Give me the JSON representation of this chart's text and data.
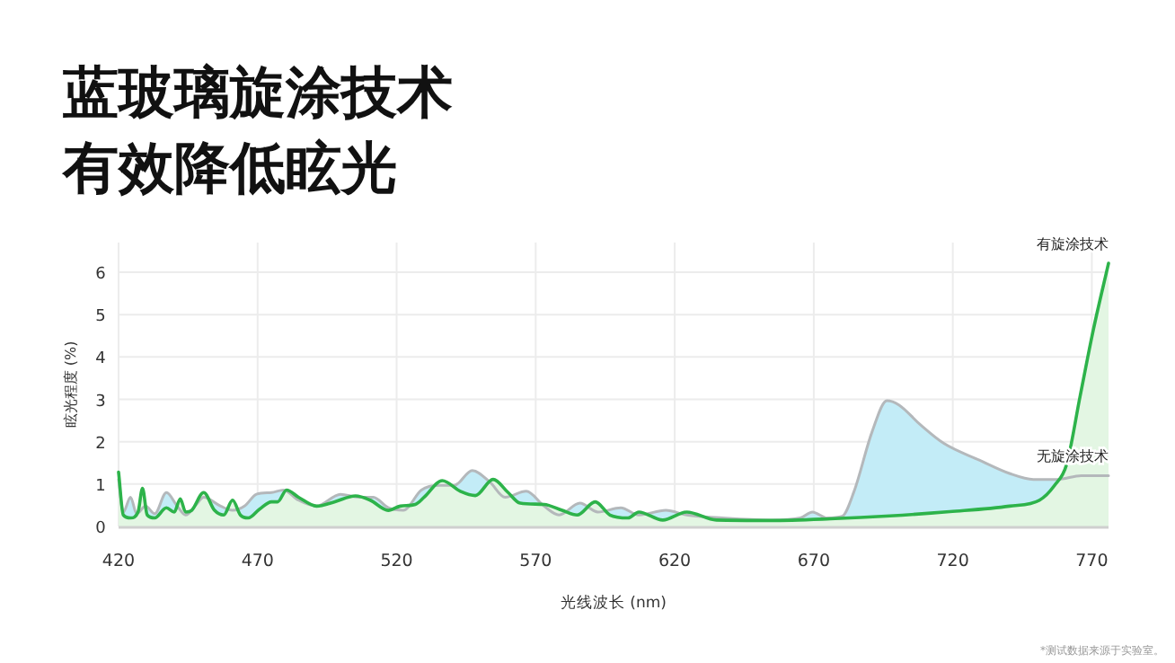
{
  "chart_data": {
    "type": "area",
    "title": "蓝玻璃旋涂技术",
    "subtitle": "有效降低眩光",
    "xlabel": "光线波长 (nm)",
    "ylabel": "眩光程度 (%)",
    "annotations": [
      "*测试数据来源于实验室。"
    ],
    "xlim": [
      420,
      776
    ],
    "xticks": [
      420,
      470,
      520,
      570,
      620,
      670,
      720,
      770
    ],
    "ylim": [
      0,
      6.7
    ],
    "yticks": [
      0,
      1,
      2,
      3,
      4,
      5,
      6
    ],
    "grid": true,
    "series": [
      {
        "name": "无旋涂技术",
        "color": "#b4b8bb",
        "x": [
          420,
          421.7,
          424.3,
          426.5,
          429.7,
          433,
          437.2,
          441.1,
          444.1,
          448,
          450.6,
          456.7,
          461,
          465.3,
          469.6,
          475,
          479.3,
          484.7,
          491.2,
          499.8,
          506.3,
          511.6,
          517,
          522.4,
          528.9,
          535.3,
          540.7,
          547.2,
          553.6,
          559,
          566.6,
          573,
          578.4,
          585.9,
          592.4,
          600.6,
          607.1,
          616.8,
          624.3,
          637.2,
          654.4,
          665.2,
          669.5,
          674.8,
          680.2,
          684.5,
          691,
          696.3,
          700.6,
          708.2,
          716.8,
          729.7,
          740.4,
          749,
          757.6,
          766.2,
          776
        ],
        "values": [
          1.11,
          0.34,
          0.69,
          0.3,
          0.48,
          0.3,
          0.8,
          0.48,
          0.27,
          0.52,
          0.69,
          0.48,
          0.38,
          0.48,
          0.76,
          0.8,
          0.86,
          0.62,
          0.48,
          0.76,
          0.69,
          0.69,
          0.44,
          0.38,
          0.86,
          0.97,
          0.97,
          1.32,
          1.04,
          0.69,
          0.83,
          0.48,
          0.27,
          0.55,
          0.34,
          0.44,
          0.27,
          0.38,
          0.27,
          0.2,
          0.15,
          0.2,
          0.34,
          0.2,
          0.24,
          0.83,
          2.24,
          2.97,
          2.87,
          2.41,
          1.96,
          1.56,
          1.25,
          1.11,
          1.11,
          1.2,
          1.2
        ]
      },
      {
        "name": "有旋涂技术",
        "color": "#2db34a",
        "x": [
          420,
          421.7,
          424.3,
          427,
          428.6,
          430.3,
          433,
          437.2,
          440,
          442.2,
          444.1,
          446.3,
          450.6,
          454.5,
          457.8,
          461,
          463.8,
          466.6,
          470.7,
          475,
          477.2,
          480.4,
          484.7,
          491.2,
          497.6,
          505.2,
          510.5,
          517,
          521.3,
          526.7,
          529.9,
          536.4,
          542.9,
          548.3,
          554.7,
          560.1,
          564.4,
          573,
          579.5,
          584.9,
          591.4,
          596.7,
          603.2,
          607.1,
          615.7,
          624.3,
          635,
          654.4,
          675.9,
          697.4,
          718.9,
          740.4,
          751.2,
          756.6,
          760.9,
          765.8,
          770.5,
          776
        ],
        "values": [
          1.28,
          0.27,
          0.2,
          0.34,
          0.9,
          0.27,
          0.2,
          0.44,
          0.34,
          0.65,
          0.34,
          0.38,
          0.8,
          0.38,
          0.27,
          0.62,
          0.27,
          0.2,
          0.41,
          0.58,
          0.58,
          0.86,
          0.69,
          0.48,
          0.58,
          0.72,
          0.62,
          0.38,
          0.48,
          0.52,
          0.69,
          1.08,
          0.83,
          0.73,
          1.11,
          0.8,
          0.55,
          0.52,
          0.38,
          0.27,
          0.58,
          0.27,
          0.2,
          0.34,
          0.15,
          0.34,
          0.15,
          0.14,
          0.18,
          0.25,
          0.35,
          0.48,
          0.62,
          0.97,
          1.46,
          3.08,
          4.63,
          6.21
        ]
      }
    ]
  }
}
